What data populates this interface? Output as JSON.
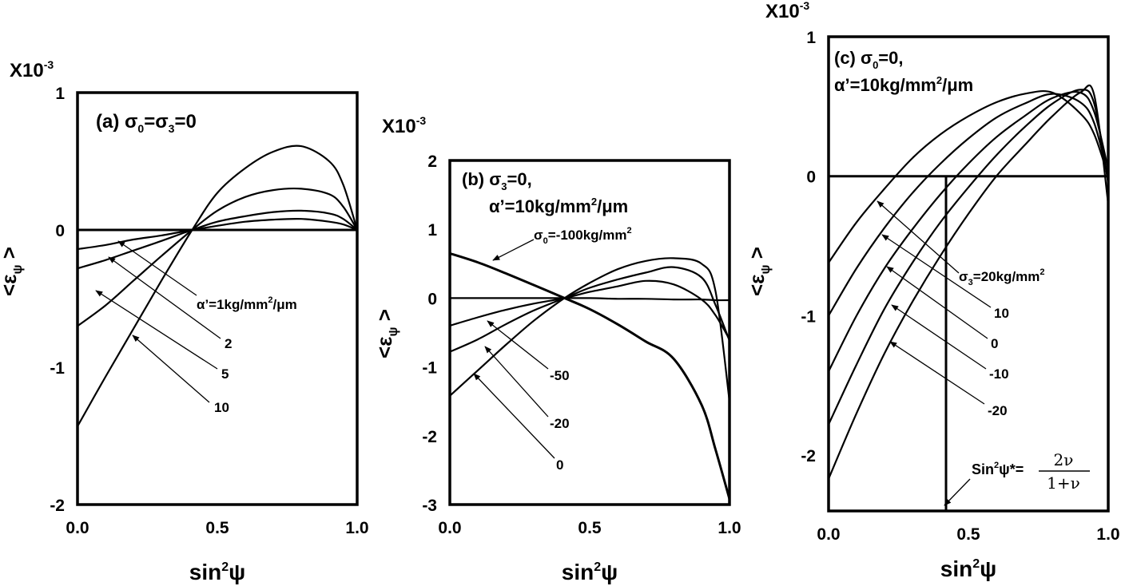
{
  "chart_data": [
    {
      "id": "a",
      "type": "line",
      "title": "(a) σ0=σ3=0",
      "multiplier": "X10-3",
      "xlabel": "sin2ψ",
      "ylabel": "<εψ>",
      "xlim": [
        0.0,
        1.0
      ],
      "ylim": [
        -2,
        1
      ],
      "xticks": [
        "0.0",
        "0.5",
        "1.0"
      ],
      "yticks": [
        "1",
        "0",
        "-1",
        "-2"
      ],
      "grid": false,
      "annotations": [
        "α'=1kg/mm2/μm",
        "2",
        "5",
        "10"
      ],
      "series": [
        {
          "x": [
            0,
            0.1,
            0.2,
            0.3,
            0.41,
            0.5,
            0.6,
            0.7,
            0.8,
            0.9,
            0.95,
            1.0
          ],
          "y": [
            0.0,
            0.0,
            0.0,
            0.0,
            0.0,
            0.0,
            0.0,
            0.0,
            0.0,
            0.0,
            0.0,
            0.0
          ]
        },
        {
          "x": [
            0,
            0.1,
            0.2,
            0.3,
            0.41,
            0.5,
            0.6,
            0.7,
            0.8,
            0.9,
            0.95,
            1.0
          ],
          "y": [
            -0.14,
            -0.11,
            -0.07,
            -0.04,
            0.0,
            0.03,
            0.06,
            0.075,
            0.08,
            0.06,
            0.04,
            0.0
          ]
        },
        {
          "x": [
            0,
            0.1,
            0.2,
            0.3,
            0.41,
            0.5,
            0.6,
            0.7,
            0.8,
            0.9,
            0.95,
            1.0
          ],
          "y": [
            -0.28,
            -0.22,
            -0.15,
            -0.08,
            0.0,
            0.06,
            0.1,
            0.13,
            0.14,
            0.12,
            0.08,
            0.0
          ]
        },
        {
          "x": [
            0,
            0.1,
            0.2,
            0.3,
            0.41,
            0.5,
            0.6,
            0.7,
            0.8,
            0.9,
            0.95,
            1.0
          ],
          "y": [
            -0.7,
            -0.55,
            -0.37,
            -0.19,
            0.0,
            0.14,
            0.24,
            0.29,
            0.3,
            0.26,
            0.17,
            0.0
          ]
        },
        {
          "x": [
            0,
            0.1,
            0.2,
            0.3,
            0.41,
            0.5,
            0.6,
            0.7,
            0.8,
            0.9,
            0.95,
            1.0
          ],
          "y": [
            -1.43,
            -1.07,
            -0.72,
            -0.37,
            0.0,
            0.27,
            0.45,
            0.57,
            0.61,
            0.5,
            0.33,
            0.0
          ]
        }
      ]
    },
    {
      "id": "b",
      "type": "line",
      "title": "(b) σ3=0,",
      "title2": "α'=10kg/mm2/μm",
      "multiplier": "X10-3",
      "xlabel": "sin2ψ",
      "ylabel": "<εψ>",
      "xlim": [
        0.0,
        1.0
      ],
      "ylim": [
        -3,
        2
      ],
      "xticks": [
        "0.0",
        "0.5",
        "1.0"
      ],
      "yticks": [
        "2",
        "1",
        "0",
        "-1",
        "-2",
        "-3"
      ],
      "grid": false,
      "annotations": [
        "σ0=-100kg/mm2",
        "-50",
        "-20",
        "0"
      ],
      "series": [
        {
          "x": [
            0,
            0.1,
            0.2,
            0.3,
            0.41,
            0.5,
            0.6,
            0.7,
            0.8,
            0.9,
            0.95,
            1.0
          ],
          "y": [
            0.65,
            0.52,
            0.36,
            0.19,
            0.0,
            -0.16,
            -0.38,
            -0.63,
            -0.88,
            -1.55,
            -2.2,
            -2.92
          ]
        },
        {
          "x": [
            0,
            0.1,
            0.2,
            0.3,
            0.41,
            0.5,
            0.6,
            0.7,
            0.8,
            0.9,
            0.95,
            1.0
          ],
          "y": [
            0.0,
            0.0,
            0.0,
            0.0,
            0.0,
            0.0,
            -0.01,
            -0.01,
            -0.02,
            -0.02,
            -0.03,
            -0.03
          ]
        },
        {
          "x": [
            0,
            0.1,
            0.2,
            0.3,
            0.41,
            0.5,
            0.6,
            0.7,
            0.8,
            0.9,
            0.95,
            1.0
          ],
          "y": [
            -0.4,
            -0.28,
            -0.17,
            -0.08,
            0.0,
            0.09,
            0.17,
            0.25,
            0.2,
            -0.02,
            -0.25,
            -0.6
          ]
        },
        {
          "x": [
            0,
            0.1,
            0.2,
            0.3,
            0.41,
            0.5,
            0.6,
            0.7,
            0.8,
            0.9,
            0.95,
            1.0
          ],
          "y": [
            -0.78,
            -0.6,
            -0.38,
            -0.18,
            0.0,
            0.15,
            0.27,
            0.37,
            0.45,
            0.3,
            -0.1,
            -0.62
          ]
        },
        {
          "x": [
            0,
            0.1,
            0.2,
            0.3,
            0.41,
            0.5,
            0.6,
            0.7,
            0.8,
            0.9,
            0.95,
            1.0
          ],
          "y": [
            -1.42,
            -1.05,
            -0.68,
            -0.33,
            0.0,
            0.22,
            0.42,
            0.54,
            0.58,
            0.5,
            0.1,
            -1.5
          ]
        }
      ]
    },
    {
      "id": "c",
      "type": "line",
      "title": "(c) σ0=0,",
      "title2": "α'=10kg/mm2/μm",
      "multiplier": "X10-3",
      "xlabel": "sin2ψ",
      "ylabel": "<εψ>",
      "xlim": [
        0.0,
        1.0
      ],
      "ylim": [
        -2.4,
        1
      ],
      "xticks": [
        "0.0",
        "0.5",
        "1.0"
      ],
      "yticks": [
        "1",
        "0",
        "-1",
        "-2"
      ],
      "grid": false,
      "annotations": [
        "σ3=20kg/mm2",
        "10",
        "0",
        "-10",
        "-20"
      ],
      "formula": {
        "lhs": "Sin2ψ*=",
        "num": "2ν",
        "den": "1+ν"
      },
      "vline_x": 0.42,
      "series": [
        {
          "x": [
            0,
            0.1,
            0.2,
            0.3,
            0.4,
            0.5,
            0.6,
            0.7,
            0.8,
            0.9,
            0.95,
            1.0
          ],
          "y": [
            -0.62,
            -0.33,
            -0.09,
            0.13,
            0.3,
            0.43,
            0.53,
            0.59,
            0.6,
            0.45,
            0.3,
            0.0
          ]
        },
        {
          "x": [
            0,
            0.1,
            0.2,
            0.3,
            0.4,
            0.5,
            0.6,
            0.7,
            0.8,
            0.9,
            0.95,
            1.0
          ],
          "y": [
            -1.0,
            -0.66,
            -0.37,
            -0.12,
            0.09,
            0.27,
            0.42,
            0.52,
            0.59,
            0.53,
            0.38,
            0.0
          ]
        },
        {
          "x": [
            0,
            0.1,
            0.2,
            0.3,
            0.4,
            0.5,
            0.6,
            0.7,
            0.8,
            0.9,
            0.95,
            1.0
          ],
          "y": [
            -1.4,
            -1.0,
            -0.66,
            -0.38,
            -0.13,
            0.09,
            0.28,
            0.43,
            0.56,
            0.6,
            0.46,
            0.05
          ]
        },
        {
          "x": [
            0,
            0.1,
            0.2,
            0.3,
            0.4,
            0.5,
            0.6,
            0.7,
            0.8,
            0.9,
            0.95,
            1.0
          ],
          "y": [
            -1.78,
            -1.35,
            -0.95,
            -0.62,
            -0.33,
            -0.08,
            0.15,
            0.35,
            0.52,
            0.62,
            0.52,
            -0.05
          ]
        },
        {
          "x": [
            0,
            0.1,
            0.2,
            0.3,
            0.4,
            0.5,
            0.6,
            0.7,
            0.8,
            0.9,
            0.95,
            1.0
          ],
          "y": [
            -2.17,
            -1.7,
            -1.27,
            -0.9,
            -0.57,
            -0.27,
            0.0,
            0.22,
            0.43,
            0.6,
            0.58,
            -0.2
          ]
        }
      ]
    }
  ]
}
